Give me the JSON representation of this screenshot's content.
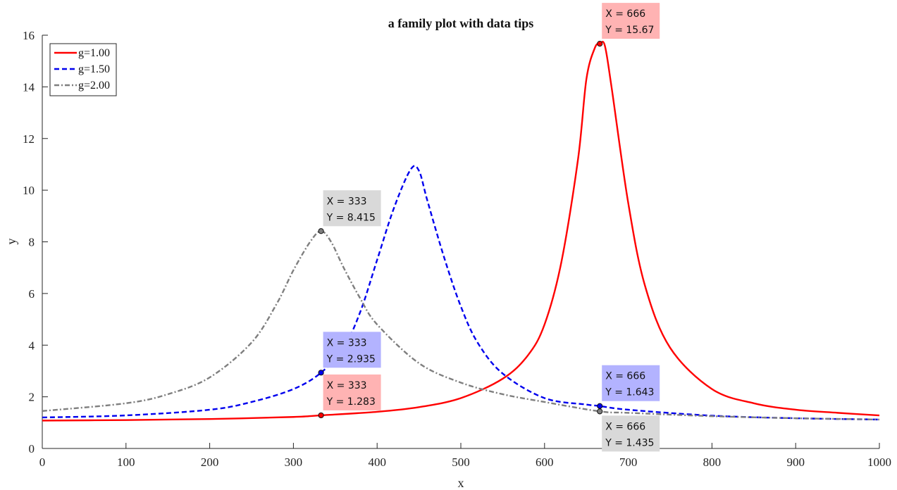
{
  "chart_data": {
    "type": "line",
    "title": "a family plot with data tips",
    "xlabel": "x",
    "ylabel": "y",
    "xlim": [
      0,
      1000
    ],
    "ylim": [
      0,
      16
    ],
    "xticks": [
      0,
      100,
      200,
      300,
      400,
      500,
      600,
      700,
      800,
      900,
      1000
    ],
    "yticks": [
      0,
      2,
      4,
      6,
      8,
      10,
      12,
      14,
      16
    ],
    "grid": false,
    "legend_position": "top-left",
    "series": [
      {
        "name": "g=1.00",
        "color": "#ff0000",
        "dash": "solid",
        "x": [
          0,
          100,
          200,
          300,
          333,
          400,
          450,
          500,
          550,
          580,
          600,
          620,
          640,
          650,
          660,
          666,
          672,
          680,
          700,
          720,
          750,
          800,
          850,
          900,
          950,
          1000
        ],
        "y": [
          1.08,
          1.1,
          1.14,
          1.22,
          1.283,
          1.42,
          1.6,
          1.95,
          2.7,
          3.6,
          4.8,
          7.2,
          11.2,
          14.3,
          15.5,
          15.67,
          15.6,
          14.0,
          9.5,
          6.3,
          3.9,
          2.3,
          1.75,
          1.5,
          1.38,
          1.28
        ]
      },
      {
        "name": "g=1.50",
        "color": "#0000ee",
        "dash": "dashed",
        "x": [
          0,
          100,
          200,
          250,
          300,
          333,
          360,
          380,
          400,
          420,
          440,
          450,
          460,
          480,
          500,
          520,
          550,
          600,
          650,
          666,
          700,
          800,
          900,
          1000
        ],
        "y": [
          1.2,
          1.28,
          1.5,
          1.8,
          2.3,
          2.935,
          3.9,
          5.3,
          7.3,
          9.3,
          10.8,
          10.75,
          9.6,
          7.4,
          5.5,
          4.1,
          2.9,
          1.95,
          1.7,
          1.643,
          1.5,
          1.27,
          1.17,
          1.12
        ]
      },
      {
        "name": "g=2.00",
        "color": "#7f7f7f",
        "dash": "dashdot",
        "x": [
          0,
          100,
          150,
          200,
          250,
          280,
          300,
          320,
          333,
          345,
          360,
          380,
          400,
          450,
          500,
          550,
          600,
          666,
          700,
          800,
          900,
          1000
        ],
        "y": [
          1.45,
          1.75,
          2.1,
          2.75,
          4.1,
          5.6,
          6.9,
          8.0,
          8.415,
          8.0,
          7.0,
          5.8,
          4.8,
          3.3,
          2.55,
          2.1,
          1.8,
          1.435,
          1.38,
          1.25,
          1.17,
          1.12
        ]
      }
    ],
    "data_tips": [
      {
        "series": "g=1.00",
        "x": 666,
        "y": 15.67,
        "color": "#ffb3b3",
        "text_x": "X =    666",
        "text_y": "Y =  15.67",
        "placement": "above-right"
      },
      {
        "series": "g=1.00",
        "x": 333,
        "y": 1.283,
        "color": "#ffb3b3",
        "text_x": "X =    333",
        "text_y": "Y =  1.283",
        "placement": "above-right"
      },
      {
        "series": "g=1.50",
        "x": 333,
        "y": 2.935,
        "color": "#b3b3ff",
        "text_x": "X =    333",
        "text_y": "Y =  2.935",
        "placement": "above-right"
      },
      {
        "series": "g=1.50",
        "x": 666,
        "y": 1.643,
        "color": "#b3b3ff",
        "text_x": "X =    666",
        "text_y": "Y =  1.643",
        "placement": "above-right"
      },
      {
        "series": "g=2.00",
        "x": 333,
        "y": 8.415,
        "color": "#d9d9d9",
        "text_x": "X =    333",
        "text_y": "Y =  8.415",
        "placement": "above-right"
      },
      {
        "series": "g=2.00",
        "x": 666,
        "y": 1.435,
        "color": "#d9d9d9",
        "text_x": "X =    666",
        "text_y": "Y =  1.435",
        "placement": "below-right"
      }
    ]
  }
}
